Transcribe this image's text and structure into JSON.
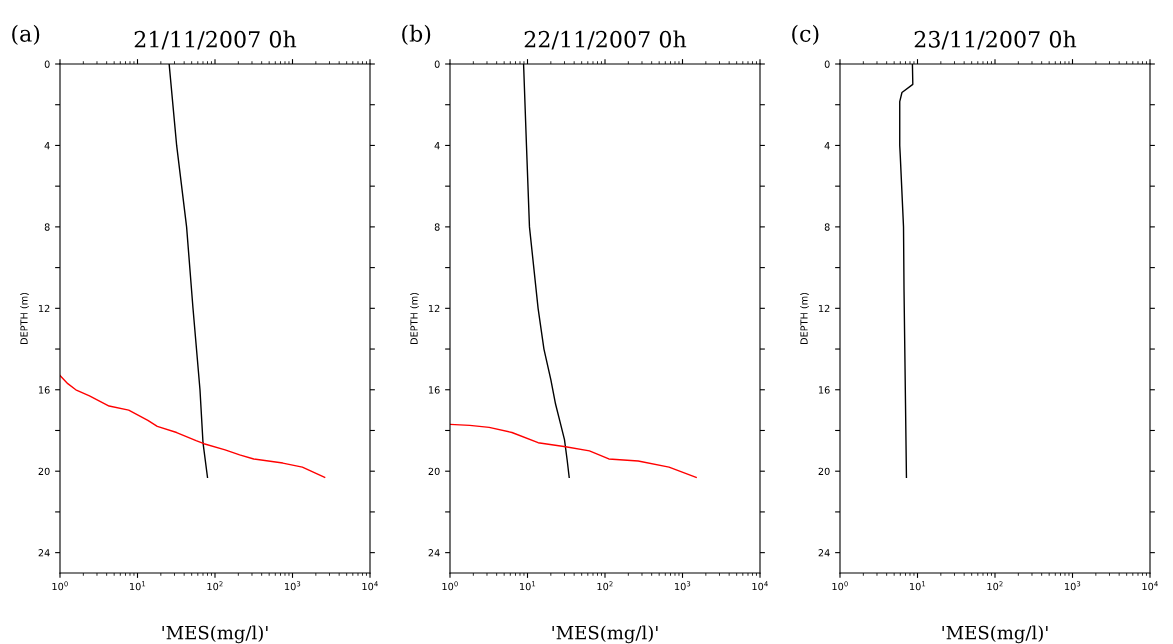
{
  "chart_data": [
    {
      "type": "line",
      "title": "21/11/2007 0h",
      "annotations": [
        "(a)"
      ],
      "xlabel": "'MES(mg/l)'",
      "ylabel": "DEPTH (m)",
      "log": "x",
      "grid": false,
      "legend": false,
      "xlim": [
        1,
        10000
      ],
      "xticks": [
        {
          "value": 1,
          "label": "10$^{0}$"
        },
        {
          "value": 10,
          "label": "10$^{1}$"
        },
        {
          "value": 100,
          "label": "10$^{2}$"
        },
        {
          "value": 1000,
          "label": "10$^{3}$"
        },
        {
          "value": 10000,
          "label": "10$^{4}$"
        }
      ],
      "ylim": [
        25,
        0
      ],
      "yticks": [
        0,
        {
          "value": 2,
          "label": null
        },
        4,
        {
          "value": 6,
          "label": null
        },
        8,
        {
          "value": 10,
          "label": null
        },
        12,
        {
          "value": 14,
          "label": null
        },
        16,
        {
          "value": 18,
          "label": null
        },
        20,
        {
          "value": 22,
          "label": null
        },
        24
      ],
      "series": [
        {
          "color": "#000000",
          "x": [
            25.6,
            32,
            43,
            52,
            64,
            70,
            80
          ],
          "values": [
            0,
            4,
            8,
            12,
            16,
            18.6,
            20.3
          ]
        },
        {
          "color": "#ff0000",
          "x": [
            1,
            1.26,
            1.6,
            2.4,
            4.3,
            7.7,
            13.6,
            18,
            32,
            57,
            72,
            135,
            208,
            316,
            750,
            1340,
            2600
          ],
          "values": [
            15.3,
            15.7,
            16.0,
            16.3,
            16.8,
            17.0,
            17.5,
            17.8,
            18.1,
            18.5,
            18.65,
            18.95,
            19.2,
            19.4,
            19.6,
            19.8,
            20.3
          ]
        }
      ]
    },
    {
      "type": "line",
      "title": "22/11/2007 0h",
      "annotations": [
        "(b)"
      ],
      "xlabel": "'MES(mg/l)'",
      "ylabel": "DEPTH (m)",
      "log": "x",
      "grid": false,
      "legend": false,
      "xlim": [
        1,
        10000
      ],
      "xticks": [
        {
          "value": 1,
          "label": "10$^{0}$"
        },
        {
          "value": 10,
          "label": "10$^{1}$"
        },
        {
          "value": 100,
          "label": "10$^{2}$"
        },
        {
          "value": 1000,
          "label": "10$^{3}$"
        },
        {
          "value": 10000,
          "label": "10$^{4}$"
        }
      ],
      "ylim": [
        25,
        0
      ],
      "yticks": [
        0,
        {
          "value": 2,
          "label": null
        },
        4,
        {
          "value": 6,
          "label": null
        },
        8,
        {
          "value": 10,
          "label": null
        },
        12,
        {
          "value": 14,
          "label": null
        },
        16,
        {
          "value": 18,
          "label": null
        },
        20,
        {
          "value": 22,
          "label": null
        },
        24
      ],
      "series": [
        {
          "color": "#000000",
          "x": [
            8.9,
            9.7,
            10.6,
            13.7,
            16.3,
            20,
            23,
            26,
            30,
            32.6,
            34.5
          ],
          "values": [
            0,
            4,
            8,
            12,
            14,
            15.5,
            16.7,
            17.5,
            18.45,
            19.5,
            20.3
          ]
        },
        {
          "color": "#ff0000",
          "x": [
            1,
            1.8,
            3.2,
            6.3,
            13.7,
            31,
            63,
            112,
            268,
            670,
            1500
          ],
          "values": [
            17.7,
            17.75,
            17.85,
            18.1,
            18.6,
            18.8,
            19.0,
            19.4,
            19.5,
            19.8,
            20.3
          ]
        }
      ]
    },
    {
      "type": "line",
      "title": "23/11/2007 0h",
      "annotations": [
        "(c)"
      ],
      "xlabel": "'MES(mg/l)'",
      "ylabel": "DEPTH (m)",
      "log": "x",
      "grid": false,
      "legend": false,
      "xlim": [
        1,
        10000
      ],
      "xticks": [
        {
          "value": 1,
          "label": "10$^{0}$"
        },
        {
          "value": 10,
          "label": "10$^{1}$"
        },
        {
          "value": 100,
          "label": "10$^{2}$"
        },
        {
          "value": 1000,
          "label": "10$^{3}$"
        },
        {
          "value": 10000,
          "label": "10$^{4}$"
        }
      ],
      "ylim": [
        25,
        0
      ],
      "yticks": [
        0,
        {
          "value": 2,
          "label": null
        },
        4,
        {
          "value": 6,
          "label": null
        },
        8,
        {
          "value": 10,
          "label": null
        },
        12,
        {
          "value": 14,
          "label": null
        },
        16,
        {
          "value": 18,
          "label": null
        },
        20,
        {
          "value": 22,
          "label": null
        },
        24
      ],
      "series": [
        {
          "color": "#000000",
          "x": [
            8.6,
            8.7,
            6.3,
            5.9,
            5.9,
            6.0,
            6.6,
            6.7,
            7.0,
            7.2
          ],
          "values": [
            0,
            1.0,
            1.4,
            1.85,
            4,
            4.55,
            8,
            11.1,
            16.65,
            20.3
          ]
        }
      ]
    }
  ]
}
